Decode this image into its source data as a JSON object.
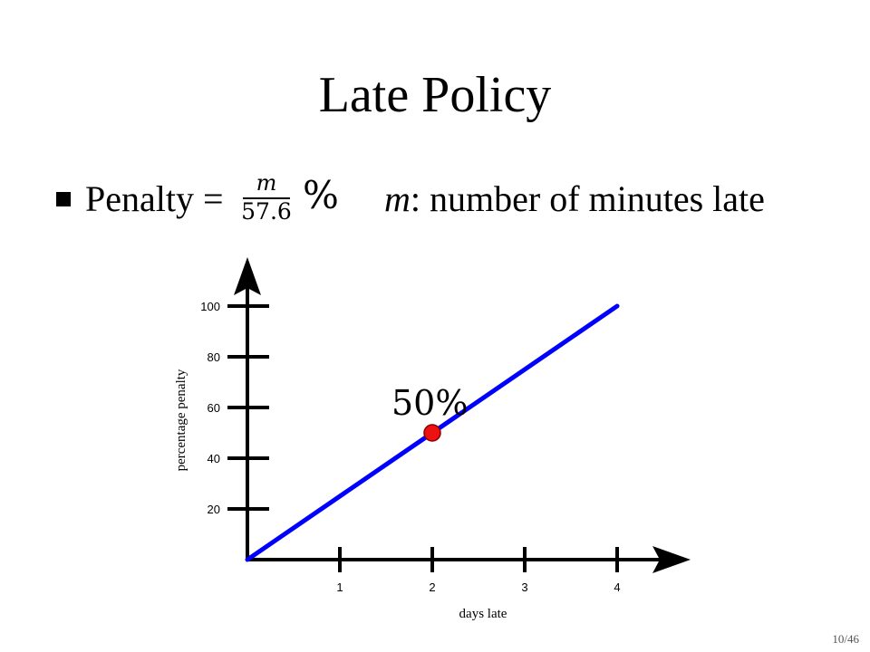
{
  "slide": {
    "title": "Late Policy",
    "penalty_label": "Penalty =",
    "formula_numerator": "m",
    "formula_denominator": "57.6",
    "formula_suffix": "%",
    "definition_var": "m",
    "definition_text": ": number of minutes late",
    "page_number": "10/46"
  },
  "chart_data": {
    "type": "line",
    "xlabel": "days late",
    "ylabel": "percentage penalty",
    "x_ticks": [
      1,
      2,
      3,
      4
    ],
    "y_ticks": [
      20,
      40,
      60,
      80,
      100
    ],
    "xlim": [
      0,
      4.8
    ],
    "ylim": [
      0,
      100
    ],
    "series": [
      {
        "x": [
          0,
          4
        ],
        "y": [
          0,
          100
        ],
        "color": "#0000ff"
      }
    ],
    "highlight": {
      "x": 2,
      "y": 50,
      "label": "50%",
      "color": "#ee1111"
    },
    "axis_color": "#000000"
  }
}
